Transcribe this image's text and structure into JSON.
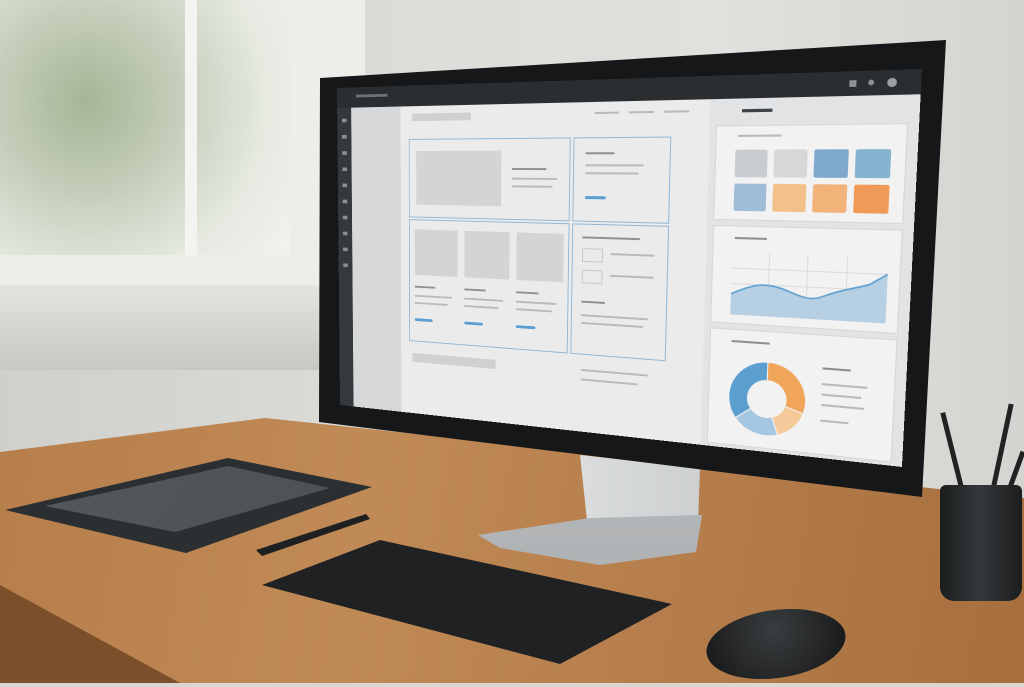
{
  "scene": {
    "wall_color": "#d8d7d3",
    "desk_color": "#b57c48",
    "bezel_color": "#151718"
  },
  "screen_ui": {
    "accent_color": "#5a9fd4",
    "swatches": [
      "#c9cdd1",
      "#d5d7d9",
      "#7fa9cc",
      "#86b4d0",
      "#9fbdd6",
      "#f3c089",
      "#f2b37a",
      "#ef9a57"
    ],
    "donut_segments": [
      {
        "color": "#f0a55a",
        "share": 0.3
      },
      {
        "color": "#f6c99a",
        "share": 0.15
      },
      {
        "color": "#a5c6e0",
        "share": 0.2
      },
      {
        "color": "#5b9fcf",
        "share": 0.35
      }
    ],
    "icons": [
      "menu-icon",
      "back-icon",
      "forward-icon",
      "settings-icon",
      "user-icon"
    ]
  }
}
